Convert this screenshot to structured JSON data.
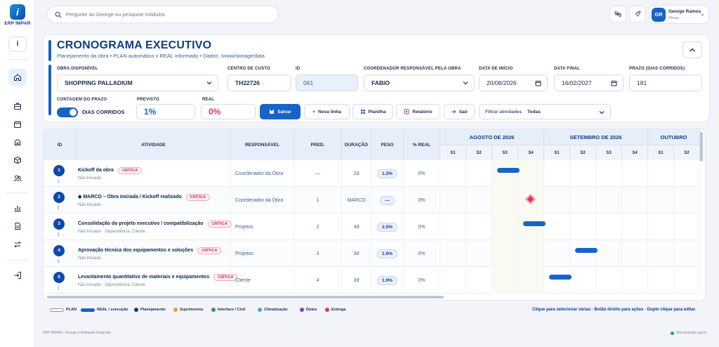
{
  "app": {
    "logo_letter": "i",
    "logo_text": "ERP ÍMPAR",
    "info_label": "i"
  },
  "search": {
    "placeholder": "Pergunte ao George ou pesquise módulos"
  },
  "user": {
    "initials": "GR",
    "name": "George Ramos",
    "role": "Obras"
  },
  "header": {
    "title": "CRONOGRAMA EXECUTIVO",
    "subtitle": "Planejamento da obra • PLAN automático x REAL informado • Dados: /www/storage/data"
  },
  "form": {
    "obra": {
      "label": "OBRA DISPONÍVEL",
      "value": "SHOPPING PALLADIUM"
    },
    "centro": {
      "label": "CENTRO DE CUSTO",
      "value": "TH22726"
    },
    "id": {
      "label": "ID",
      "value": "061"
    },
    "coord": {
      "label": "COORDENADOR RESPONSÁVEL PELA OBRA",
      "value": "FABIO"
    },
    "inicio": {
      "label": "DATA DE INÍCIO",
      "value": "20/08/2026"
    },
    "final": {
      "label": "DATA FINAL",
      "value": "16/02/2027"
    },
    "prazo": {
      "label": "PRAZO (DIAS CORRIDOS)",
      "value": "181"
    },
    "contagem": {
      "label": "CONTAGEM DO PRAZO",
      "value": "DIAS CORRIDOS"
    },
    "previsto": {
      "label": "PREVISTO",
      "value": "1%"
    },
    "real": {
      "label": "REAL",
      "value": "0%"
    }
  },
  "actions": {
    "salvar": "Salvar",
    "nova_linha": "Nova linha",
    "planilha": "Planilha",
    "relatorio": "Relatório",
    "sair": "Sair",
    "filter_label": "Filtrar atividades",
    "filter_value": "Todas"
  },
  "table": {
    "headers": {
      "id": "ID",
      "atividade": "ATIVIDADE",
      "responsavel": "RESPONSÁVEL",
      "pred": "PRED.",
      "duracao": "DURAÇÃO",
      "peso": "PESO",
      "real": "% REAL"
    },
    "months": [
      "AGOSTO DE 2026",
      "SETEMBRO DE 2026",
      "OUTUBRO"
    ],
    "weeks": [
      "S1",
      "S2",
      "S3",
      "S4",
      "S1",
      "S2",
      "S3",
      "S4",
      "S1",
      "S2"
    ],
    "rows": [
      {
        "id": "1",
        "name": "Kickoff da obra",
        "badge": "CRÍTICA",
        "status": "Não iniciado",
        "resp": "Coordenador da Obra",
        "pred": "—",
        "dur": "2d",
        "peso": "1.2%",
        "real": "0%",
        "gantt": {
          "type": "bar",
          "start_week": 3,
          "weeks": 1
        }
      },
      {
        "id": "2",
        "name": "◆ MARCO – Obra iniciada / Kickoff realizado",
        "badge": "CRÍTICA",
        "status": "Não iniciado",
        "resp": "Coordenador da Obra",
        "pred": "1",
        "dur": "MARCO",
        "peso": "—",
        "real": "0%",
        "gantt": {
          "type": "milestone",
          "start_week": 4,
          "weeks": 0
        }
      },
      {
        "id": "3",
        "name": "Consolidação do projeto executivo / compatibilização",
        "badge": "CRÍTICA",
        "status": "Não iniciado · Dependência: Cliente",
        "resp": "Projetos",
        "pred": "2",
        "dur": "4d",
        "peso": "2.5%",
        "real": "0%",
        "gantt": {
          "type": "bar",
          "start_week": 4,
          "weeks": 1
        }
      },
      {
        "id": "4",
        "name": "Aprovação técnica dos equipamentos e soluções",
        "badge": "CRÍTICA",
        "status": "Não iniciado",
        "resp": "Projetos",
        "pred": "3",
        "dur": "3d",
        "peso": "1.9%",
        "real": "0%",
        "gantt": {
          "type": "bar",
          "start_week": 6,
          "weeks": 1
        }
      },
      {
        "id": "5",
        "name": "Levantamento quantitativo de materiais e equipamentos",
        "badge": "CRÍTICA",
        "status": "Não iniciado · Dependência: Cliente",
        "resp": "Cliente",
        "pred": "4",
        "dur": "3d",
        "peso": "1.9%",
        "real": "0%",
        "gantt": {
          "type": "bar",
          "start_week": 5,
          "weeks": 1
        }
      }
    ]
  },
  "legend": {
    "items": [
      {
        "label": "PLAN",
        "kind": "plan",
        "color": "#ffffff"
      },
      {
        "label": "REAL / execução",
        "kind": "real",
        "color": "#1763c9"
      },
      {
        "label": "Planejamento",
        "kind": "dot",
        "color": "#0d3d8a"
      },
      {
        "label": "Suprimentos",
        "kind": "dot",
        "color": "#f39c12"
      },
      {
        "label": "Interface / Civil",
        "kind": "dot",
        "color": "#2aa44a"
      },
      {
        "label": "Climatização",
        "kind": "dot",
        "color": "#4aa3df"
      },
      {
        "label": "Dutos",
        "kind": "dot",
        "color": "#8e44ad"
      },
      {
        "label": "Entrega",
        "kind": "dot",
        "color": "#e2345a"
      }
    ],
    "hint": "Clique para selecionar várias · Botão direito para ações · Duplo clique para editar."
  },
  "footer": {
    "text": "ERP ÍMPAR • George e Ambiente Integrado",
    "status": "Sincronizado agora"
  }
}
